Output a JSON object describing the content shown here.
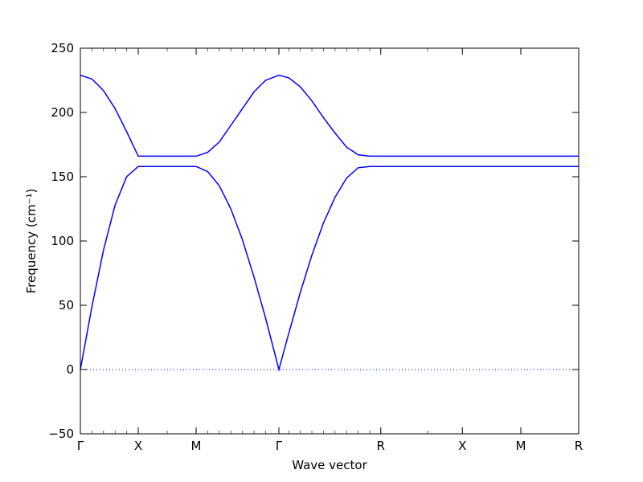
{
  "chart_data": {
    "type": "line",
    "xlabel": "Wave vector",
    "ylabel": "Frequency (cm⁻¹)",
    "x": [
      0,
      0.2,
      0.4,
      0.6,
      0.8,
      1.0,
      1.5,
      2.0,
      2.2,
      2.4,
      2.6,
      2.8,
      3.0,
      3.2,
      3.43,
      3.6,
      3.8,
      4.0,
      4.2,
      4.4,
      4.6,
      4.8,
      5.0,
      5.19,
      6.0,
      6.6,
      7.61,
      8.61
    ],
    "series": [
      {
        "color": "#0000ff",
        "values": [
          0,
          49,
          93,
          128,
          150,
          158,
          158,
          158,
          154,
          143,
          125,
          101,
          72,
          40,
          0,
          28,
          60,
          89,
          114,
          134,
          149,
          157,
          158,
          158,
          158,
          158,
          158,
          158
        ]
      },
      {
        "color": "#0000ff",
        "values": [
          229,
          226,
          217,
          203,
          185,
          166,
          166,
          166,
          169,
          177,
          190,
          203,
          216,
          225,
          229,
          227,
          220,
          209,
          196,
          184,
          173,
          167,
          166,
          166,
          166,
          166,
          166,
          166
        ]
      }
    ],
    "xlim": [
      0,
      8.61
    ],
    "ylim": [
      -50,
      250
    ],
    "xticks": [
      {
        "value": 0,
        "label": "Γ"
      },
      {
        "value": 1.0,
        "label": "X"
      },
      {
        "value": 2.0,
        "label": "M"
      },
      {
        "value": 3.43,
        "label": "Γ"
      },
      {
        "value": 5.19,
        "label": "R"
      },
      {
        "value": 6.6,
        "label": "X"
      },
      {
        "value": 7.61,
        "label": "M"
      },
      {
        "value": 8.61,
        "label": "R"
      }
    ],
    "yticks": [
      {
        "value": -50,
        "label": "−50"
      },
      0,
      50,
      100,
      150,
      200,
      250
    ],
    "zero_line": 0
  }
}
